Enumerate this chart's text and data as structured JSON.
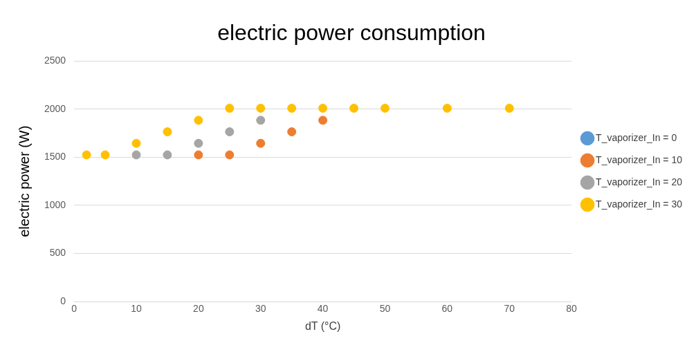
{
  "chart_data": {
    "type": "scatter",
    "title": "electric power consumption",
    "xlabel": "dT (°C)",
    "ylabel": "electric power (W)",
    "xlim": [
      0,
      80
    ],
    "xticks": [
      0,
      10,
      20,
      30,
      40,
      50,
      60,
      70,
      80
    ],
    "ylim": [
      0,
      2500
    ],
    "yticks": [
      0,
      500,
      1000,
      1500,
      2000,
      2500
    ],
    "grid": "y",
    "legend": "right",
    "marker": "circle",
    "series": [
      {
        "name": "T_vaporizer_In = 0",
        "color": "#5b9bd5"
      },
      {
        "name": "T_vaporizer_In = 10",
        "color": "#ed7d31",
        "x": [
          20,
          25,
          30,
          35,
          40
        ],
        "values": [
          1525,
          1525,
          1645,
          1765,
          1885
        ]
      },
      {
        "name": "T_vaporizer_In = 20",
        "color": "#a5a5a5",
        "x": [
          10,
          15,
          20,
          25,
          30
        ],
        "values": [
          1525,
          1525,
          1645,
          1765,
          1885
        ]
      },
      {
        "name": "T_vaporizer_In = 30",
        "color": "#ffc000",
        "x": [
          2,
          5,
          10,
          15,
          20,
          25,
          30,
          35,
          40,
          45,
          50,
          60,
          70
        ],
        "values": [
          1525,
          1525,
          1645,
          1765,
          1885,
          2010,
          2010,
          2010,
          2010,
          2010,
          2010,
          2010,
          2010
        ]
      }
    ]
  }
}
